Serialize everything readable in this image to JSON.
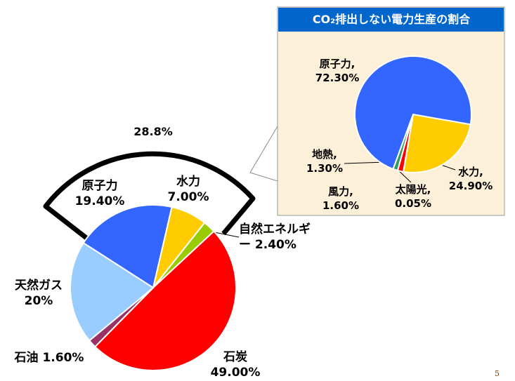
{
  "slide_number": "5",
  "chart_data": [
    {
      "type": "pie",
      "annotation": "28.8%",
      "categories": [
        "水力",
        "自然エネルギー",
        "石炭",
        "石油",
        "天然ガス",
        "原子力"
      ],
      "values": [
        7.0,
        2.4,
        49.0,
        1.6,
        20,
        19.4
      ],
      "value_labels": [
        "7.00%",
        "2.40%",
        "49.00%",
        "1.60%",
        "20%",
        "19.40%"
      ],
      "colors": [
        "#ffcc00",
        "#99cc00",
        "#ff0000",
        "#993366",
        "#99ccff",
        "#3366ff"
      ]
    },
    {
      "type": "pie",
      "title": "CO₂排出しない電力生産の割合",
      "label_separator": ",",
      "categories": [
        "水力",
        "太陽光",
        "風力",
        "地熱",
        "原子力"
      ],
      "values": [
        24.9,
        0.05,
        1.6,
        1.3,
        72.3
      ],
      "value_labels": [
        "24.90%",
        "0.05%",
        "1.60%",
        "1.30%",
        "72.30%"
      ],
      "colors": [
        "#ffcc00",
        "#ff9900",
        "#ff0000",
        "#339966",
        "#3366ff"
      ]
    }
  ]
}
